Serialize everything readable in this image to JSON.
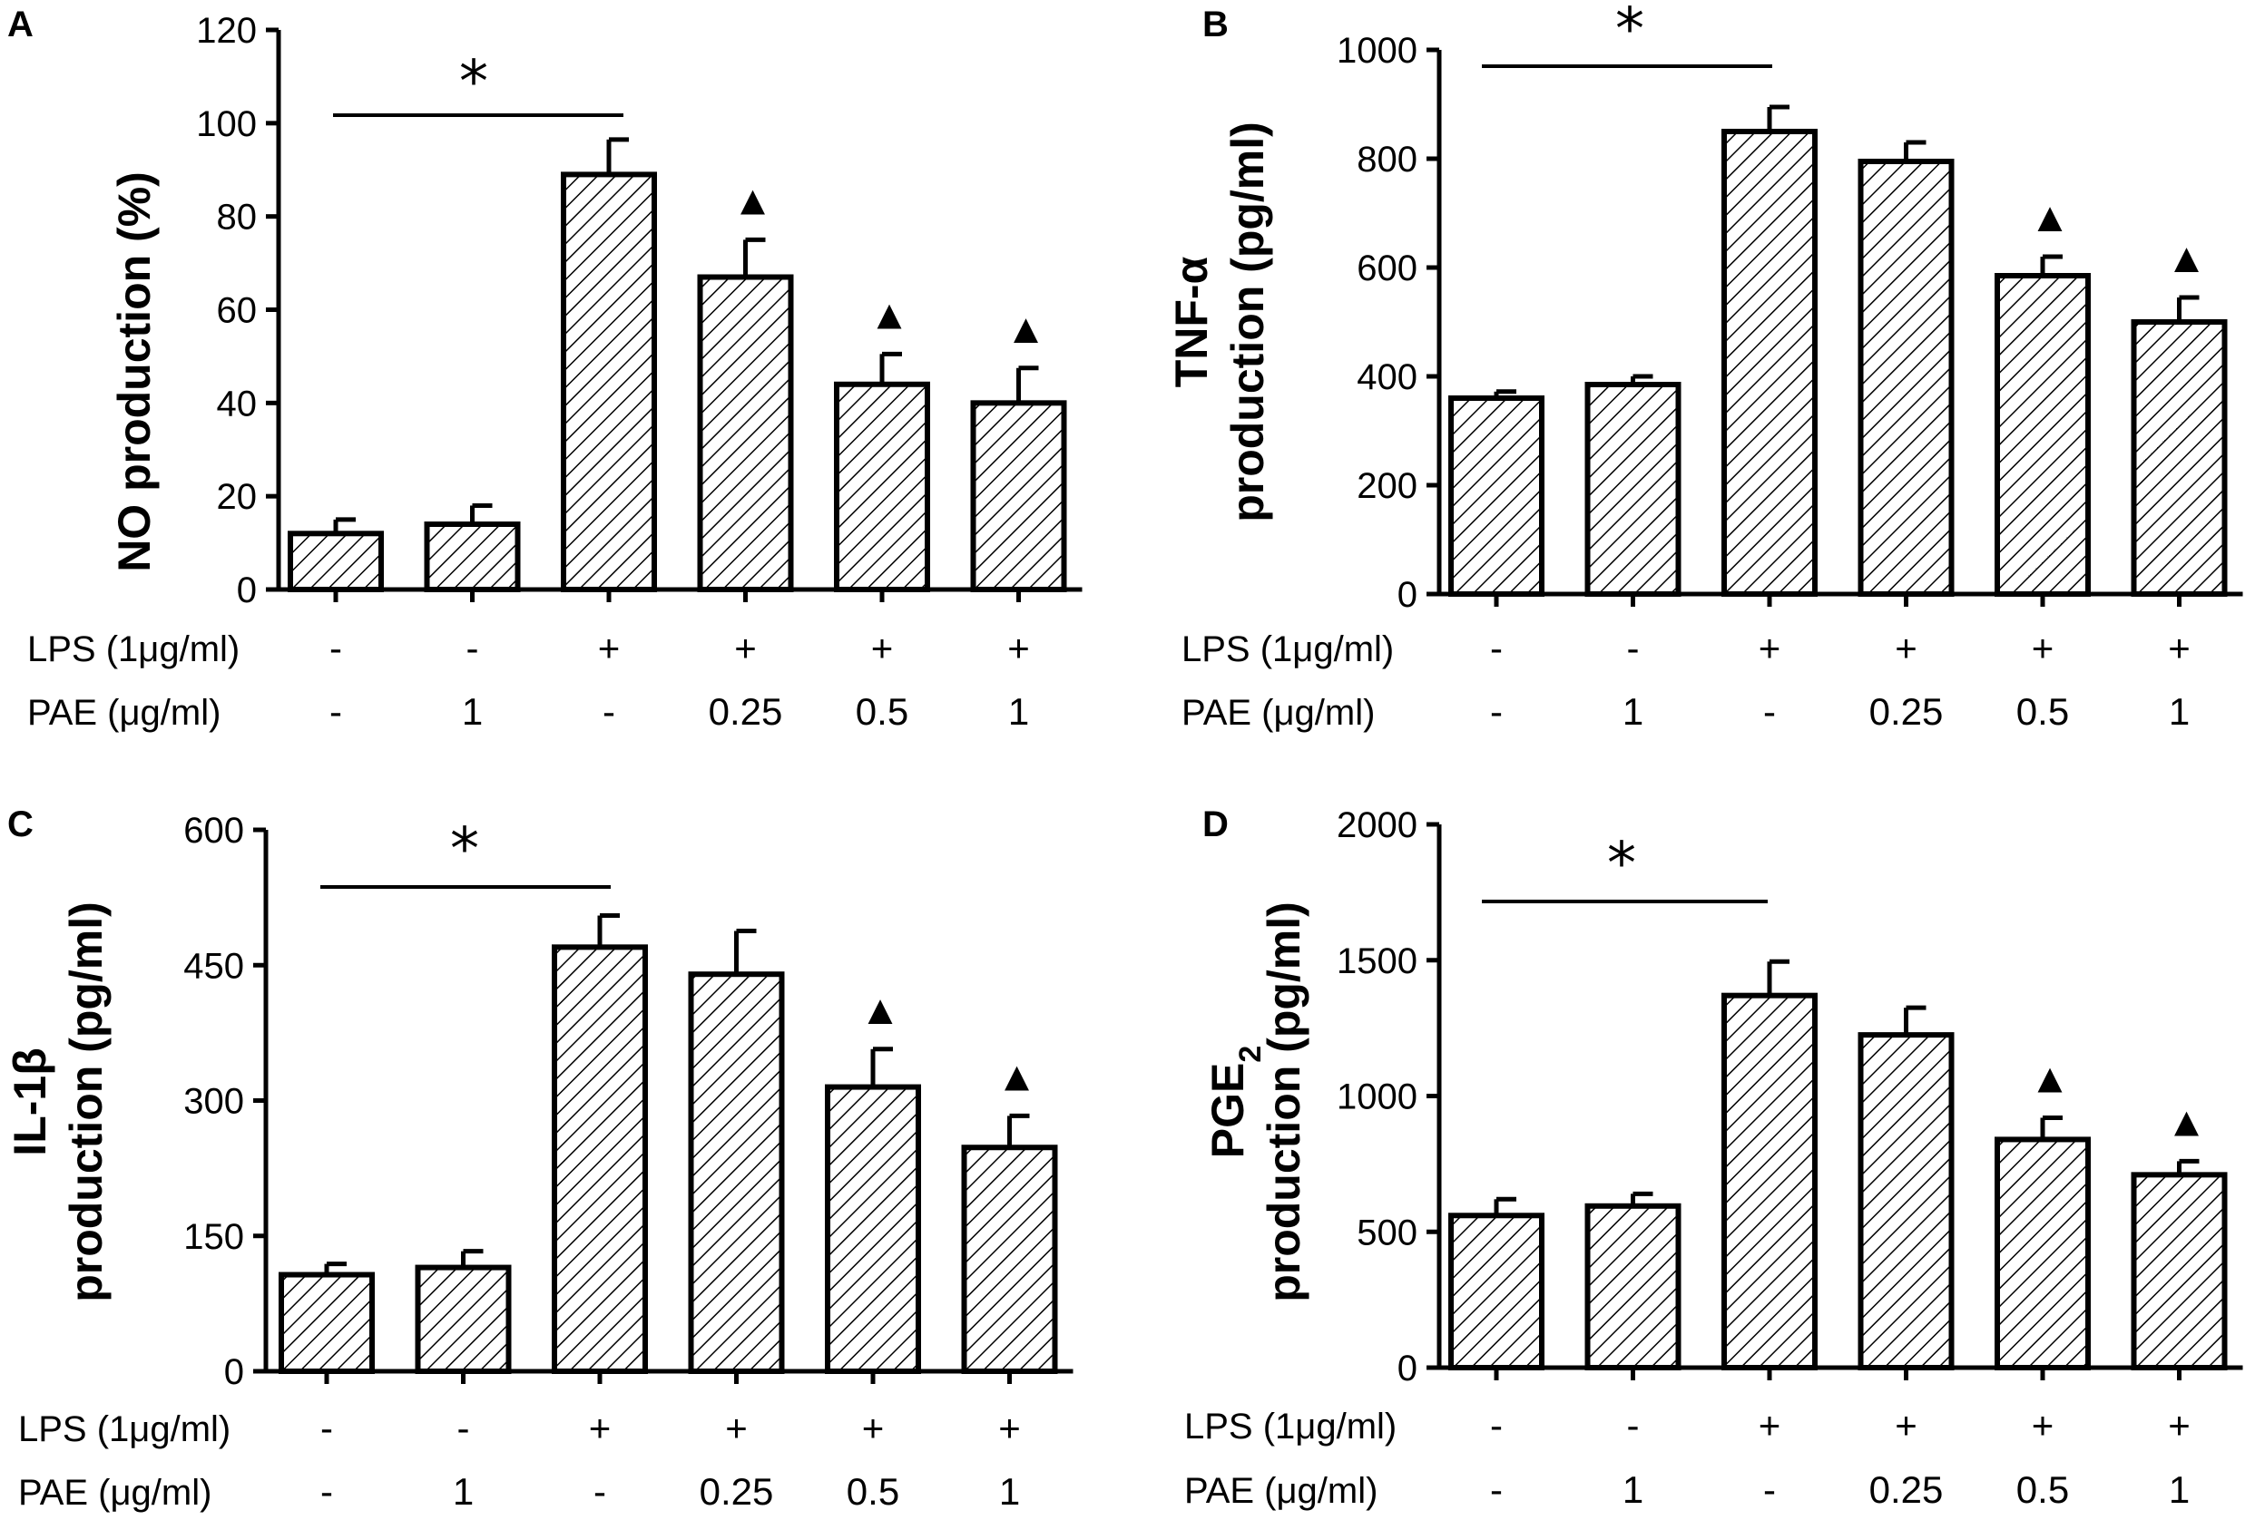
{
  "row_labels": {
    "lps": "LPS (1μg/ml)",
    "pae": "PAE (μg/ml)"
  },
  "groups": {
    "lps": [
      "-",
      "-",
      "+",
      "+",
      "+",
      "+"
    ],
    "pae": [
      "-",
      "1",
      "-",
      "0.25",
      "0.5",
      "1"
    ]
  },
  "significance": {
    "star": "*",
    "triangle": "▲"
  },
  "colors": {
    "bar_stroke": "#000000",
    "hatch": "#000000",
    "background": "#ffffff"
  },
  "chart_data": [
    {
      "panel": "A",
      "type": "bar",
      "ylabel_lines": [
        "NO production (%)"
      ],
      "ylim": [
        0,
        120
      ],
      "yticks": [
        "0",
        "20",
        "40",
        "60",
        "80",
        "100",
        "120"
      ],
      "yticks_values": [
        0,
        20,
        40,
        60,
        80,
        100,
        120
      ],
      "values": [
        12,
        14,
        89,
        67,
        44,
        40
      ],
      "errors": [
        3,
        4,
        7.5,
        8,
        6.5,
        7.5
      ],
      "triangles": [
        false,
        false,
        false,
        true,
        true,
        true
      ]
    },
    {
      "panel": "B",
      "type": "bar",
      "ylabel_lines": [
        "TNF-α",
        "production (pg/ml)"
      ],
      "ylim": [
        0,
        1000
      ],
      "yticks": [
        "0",
        "200",
        "400",
        "600",
        "800",
        "1000"
      ],
      "yticks_values": [
        0,
        200,
        400,
        600,
        800,
        1000
      ],
      "values": [
        360,
        385,
        850,
        795,
        585,
        500
      ],
      "errors": [
        12,
        15,
        45,
        35,
        35,
        45
      ],
      "triangles": [
        false,
        false,
        false,
        false,
        true,
        true
      ]
    },
    {
      "panel": "C",
      "type": "bar",
      "ylabel_lines": [
        "IL-1β",
        "production (pg/ml)"
      ],
      "ylim": [
        0,
        600
      ],
      "yticks": [
        "0",
        "150",
        "300",
        "450",
        "600"
      ],
      "yticks_values": [
        0,
        150,
        300,
        450,
        600
      ],
      "values": [
        107,
        115,
        470,
        440,
        315,
        248
      ],
      "errors": [
        12,
        18,
        35,
        48,
        42,
        35
      ],
      "triangles": [
        false,
        false,
        false,
        false,
        true,
        true
      ]
    },
    {
      "panel": "D",
      "type": "bar",
      "ylabel_lines": [
        "PGE2",
        "production (pg/ml)"
      ],
      "ylim": [
        0,
        2000
      ],
      "yticks": [
        "0",
        "500",
        "1000",
        "1500",
        "2000"
      ],
      "yticks_values": [
        0,
        500,
        1000,
        1500,
        2000
      ],
      "values": [
        560,
        595,
        1370,
        1225,
        840,
        710
      ],
      "errors": [
        60,
        45,
        125,
        100,
        80,
        50
      ],
      "triangles": [
        false,
        false,
        false,
        false,
        true,
        true
      ]
    }
  ]
}
